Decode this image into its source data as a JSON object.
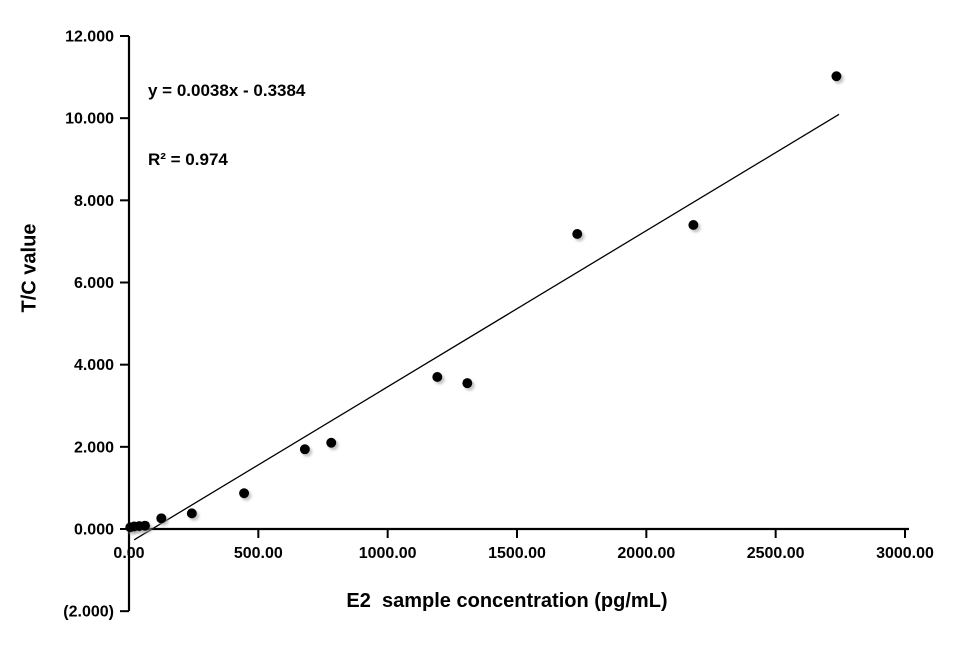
{
  "chart_data": {
    "type": "scatter",
    "title": "",
    "xlabel": "E2  sample concentration (pg/mL)",
    "ylabel": "T/C value",
    "xlim": [
      0,
      3000
    ],
    "ylim": [
      -2,
      12
    ],
    "grid": false,
    "legend": null,
    "axis_color": "#000000",
    "marker": {
      "color": "#000000",
      "radius": 5,
      "shadow": true
    },
    "x_ticks": [
      {
        "value": 0,
        "label": "0.00"
      },
      {
        "value": 500,
        "label": "500.00"
      },
      {
        "value": 1000,
        "label": "1000.00"
      },
      {
        "value": 1500,
        "label": "1500.00"
      },
      {
        "value": 2000,
        "label": "2000.00"
      },
      {
        "value": 2500,
        "label": "2500.00"
      },
      {
        "value": 3000,
        "label": "3000.00"
      }
    ],
    "y_ticks": [
      {
        "value": 12,
        "label": "12.000",
        "color": "#000000"
      },
      {
        "value": 10,
        "label": "10.000",
        "color": "#000000"
      },
      {
        "value": 8,
        "label": "8.000",
        "color": "#000000"
      },
      {
        "value": 6,
        "label": "6.000",
        "color": "#000000"
      },
      {
        "value": 4,
        "label": "4.000",
        "color": "#000000"
      },
      {
        "value": 2,
        "label": "2.000",
        "color": "#000000"
      },
      {
        "value": 0,
        "label": "0.000",
        "color": "#000000"
      },
      {
        "value": -2,
        "label": "(2.000)",
        "color": "#FF0000"
      }
    ],
    "points": [
      [
        5,
        0.04
      ],
      [
        20,
        0.06
      ],
      [
        40,
        0.07
      ],
      [
        62,
        0.08
      ],
      [
        125,
        0.26
      ],
      [
        243,
        0.38
      ],
      [
        445,
        0.87
      ],
      [
        680,
        1.94
      ],
      [
        782,
        2.1
      ],
      [
        1192,
        3.7
      ],
      [
        1308,
        3.55
      ],
      [
        1733,
        7.18
      ],
      [
        2182,
        7.4
      ],
      [
        2735,
        11.02
      ]
    ],
    "trendline": {
      "slope": 0.0038,
      "intercept": -0.3384,
      "x_start": 20,
      "x_end": 2745,
      "equation": "y = 0.0038x - 0.3384",
      "r_squared": "R² = 0.974",
      "color": "#000000"
    }
  }
}
